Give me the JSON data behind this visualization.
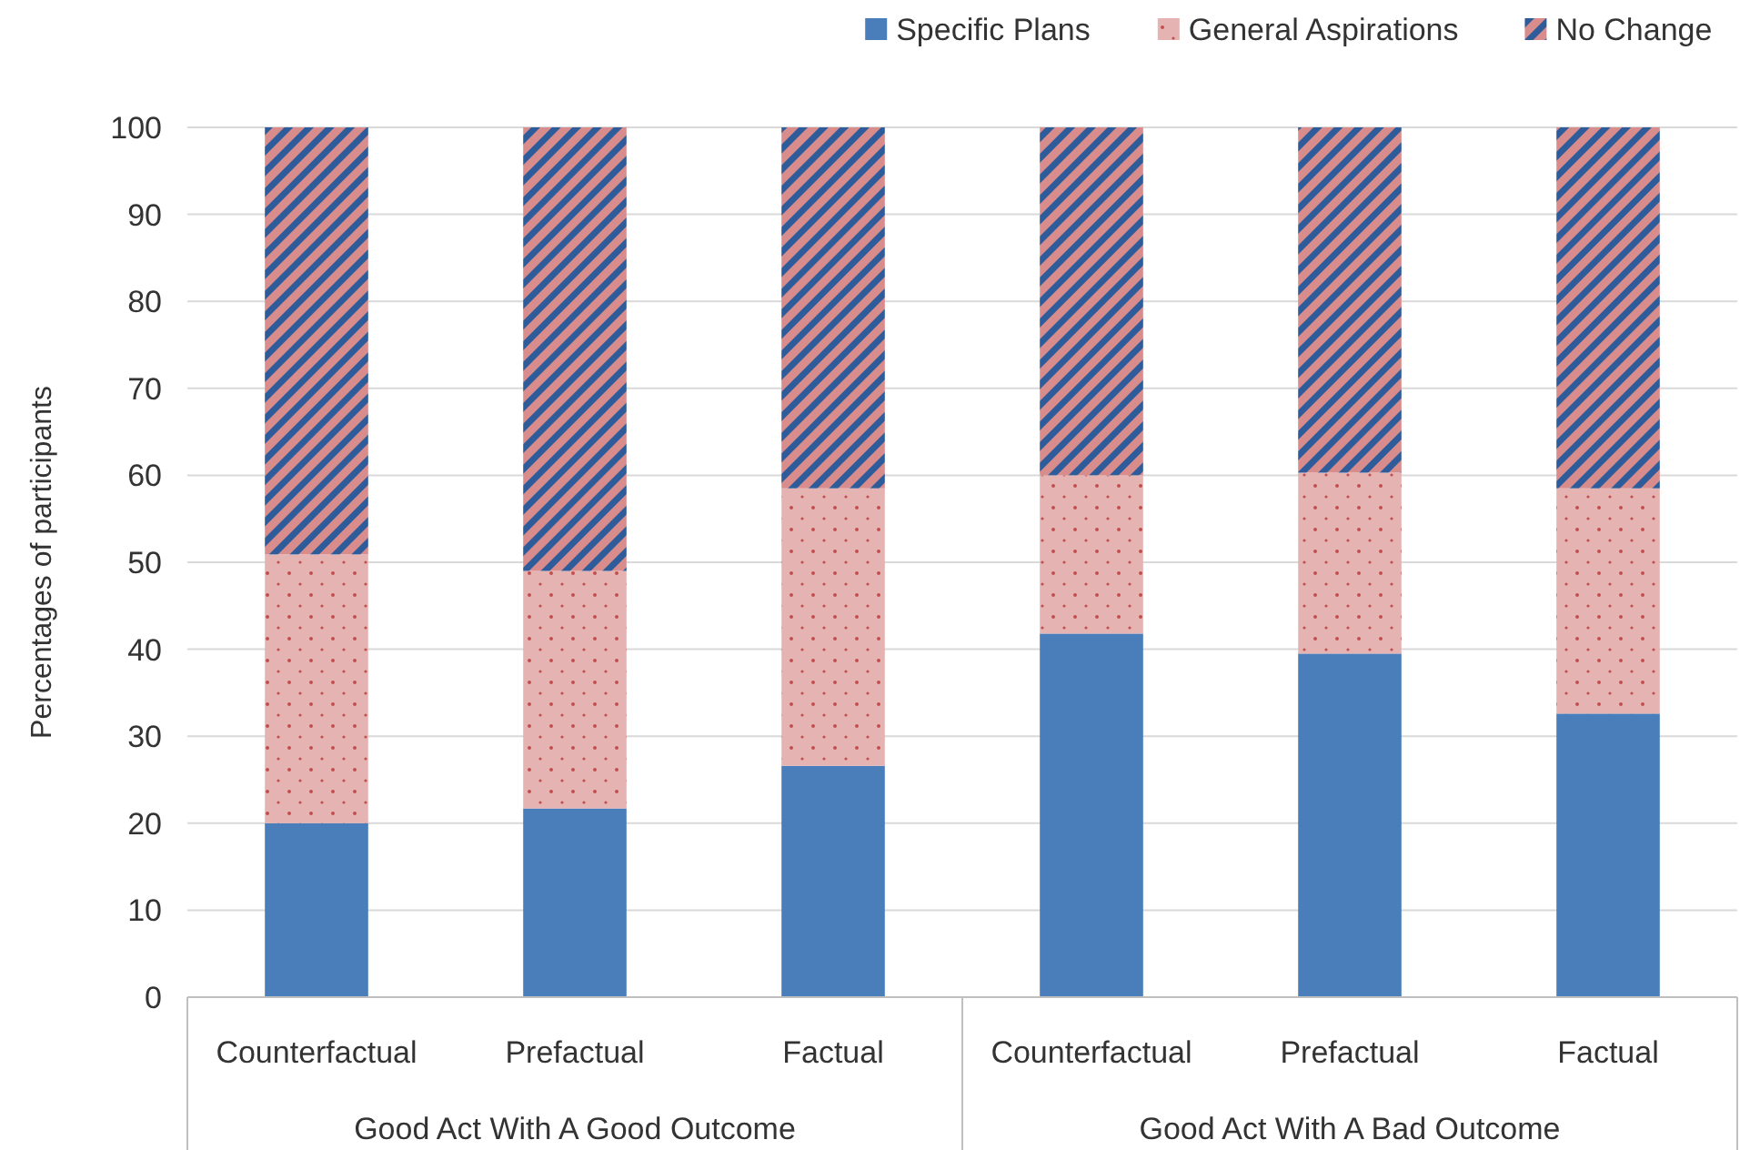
{
  "chart_data": {
    "type": "bar",
    "stacked": true,
    "ylabel": "Percentages of participants",
    "categories": [
      "Counterfactual",
      "Prefactual",
      "Factual",
      "Counterfactual",
      "Prefactual",
      "Factual"
    ],
    "annotations": [
      "Good Act With A Good Outcome",
      "Good Act With A Bad Outcome"
    ],
    "series": [
      {
        "name": "Specific Plans",
        "color": "#4a7ebb",
        "values": [
          20,
          21.7,
          26.6,
          41.8,
          39.5,
          32.6
        ]
      },
      {
        "name": "General Aspirations",
        "color": "#e6b3b3",
        "values": [
          30.9,
          27.3,
          31.9,
          18.2,
          20.8,
          25.9
        ]
      },
      {
        "name": "No Change",
        "color": "#d98c8c",
        "values": [
          49.1,
          51,
          41.5,
          40,
          39.7,
          41.5
        ]
      }
    ],
    "ylim": [
      0,
      100
    ],
    "yticks": [
      0,
      10,
      20,
      30,
      40,
      50,
      60,
      70,
      80,
      90,
      100
    ],
    "grid": "y",
    "legend": "top right"
  }
}
